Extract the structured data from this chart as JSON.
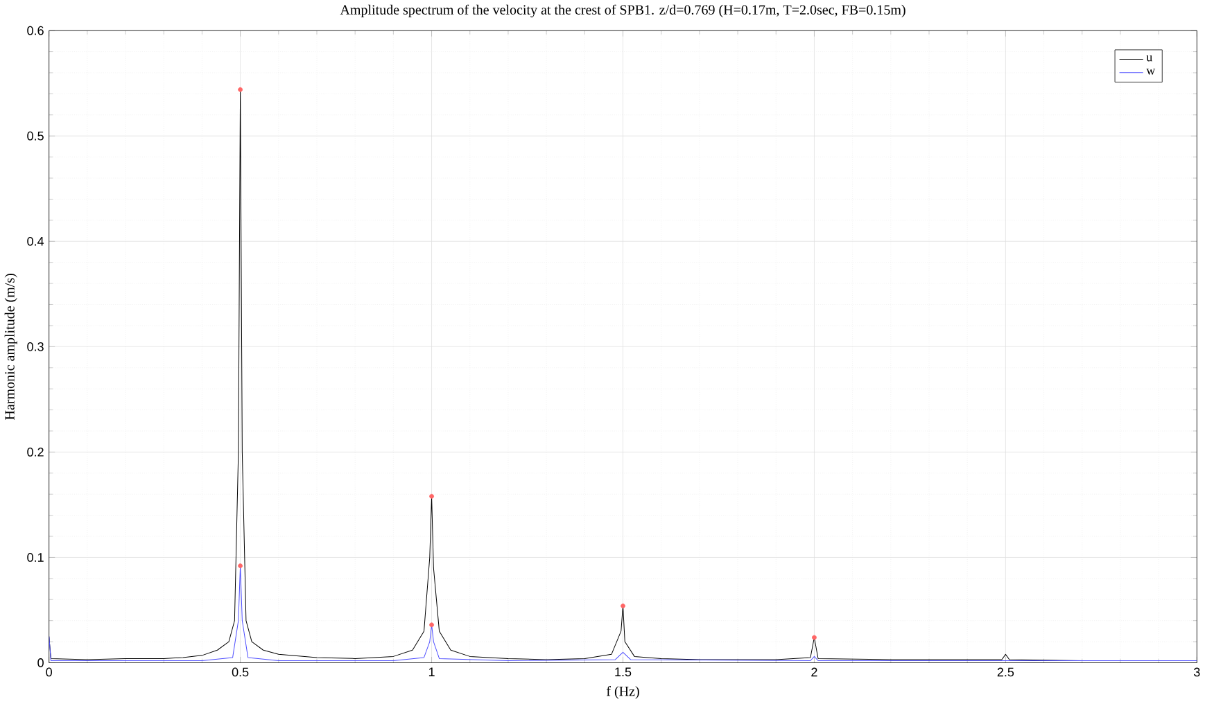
{
  "chart_data": {
    "type": "line",
    "title": "Amplitude spectrum of the velocity at the crest of SPB1. z/d=0.769 (H=0.17m, T=2.0sec, FB=0.15m)",
    "xlabel": "f (Hz)",
    "ylabel": "Harmonic amplitude (m/s)",
    "xlim": [
      0,
      3
    ],
    "ylim": [
      0,
      0.6
    ],
    "xticks": [
      0,
      0.5,
      1,
      1.5,
      2,
      2.5,
      3
    ],
    "yticks": [
      0,
      0.1,
      0.2,
      0.3,
      0.4,
      0.5,
      0.6
    ],
    "grid": true,
    "legend": "top right",
    "marker": "none",
    "line_style": "solid",
    "series": [
      {
        "name": "u",
        "color": "#000000",
        "x": [
          0,
          0.005,
          0.1,
          0.2,
          0.3,
          0.35,
          0.4,
          0.44,
          0.47,
          0.485,
          0.495,
          0.5,
          0.505,
          0.515,
          0.53,
          0.56,
          0.6,
          0.7,
          0.8,
          0.9,
          0.95,
          0.98,
          0.995,
          1.0,
          1.005,
          1.02,
          1.05,
          1.1,
          1.2,
          1.3,
          1.4,
          1.47,
          1.495,
          1.5,
          1.505,
          1.53,
          1.6,
          1.7,
          1.8,
          1.9,
          1.99,
          2.0,
          2.01,
          2.2,
          2.4,
          2.49,
          2.5,
          2.51,
          2.7,
          2.9,
          3.0
        ],
        "values": [
          0.025,
          0.004,
          0.003,
          0.004,
          0.004,
          0.005,
          0.007,
          0.012,
          0.02,
          0.04,
          0.2,
          0.544,
          0.2,
          0.04,
          0.02,
          0.012,
          0.008,
          0.005,
          0.004,
          0.006,
          0.012,
          0.03,
          0.1,
          0.158,
          0.09,
          0.03,
          0.012,
          0.006,
          0.004,
          0.003,
          0.004,
          0.008,
          0.03,
          0.054,
          0.02,
          0.006,
          0.004,
          0.003,
          0.003,
          0.003,
          0.005,
          0.024,
          0.004,
          0.003,
          0.003,
          0.003,
          0.008,
          0.003,
          0.002,
          0.002,
          0.002
        ]
      },
      {
        "name": "w",
        "color": "#4d4dff",
        "x": [
          0,
          0.005,
          0.2,
          0.4,
          0.48,
          0.495,
          0.5,
          0.505,
          0.52,
          0.6,
          0.9,
          0.98,
          0.995,
          1.0,
          1.005,
          1.02,
          1.2,
          1.48,
          1.5,
          1.52,
          1.99,
          2.0,
          2.01,
          2.5,
          3.0
        ],
        "values": [
          0.025,
          0.002,
          0.002,
          0.002,
          0.005,
          0.04,
          0.092,
          0.04,
          0.005,
          0.002,
          0.002,
          0.005,
          0.02,
          0.036,
          0.02,
          0.004,
          0.002,
          0.003,
          0.01,
          0.003,
          0.002,
          0.006,
          0.002,
          0.002,
          0.002
        ]
      },
      {
        "type": "scatter",
        "color": "#ff6666",
        "marker": "circle",
        "x": [
          0.5,
          0.5,
          1,
          1,
          1.5,
          2
        ],
        "values": [
          0.544,
          0.092,
          0.158,
          0.036,
          0.054,
          0.024
        ]
      }
    ]
  }
}
